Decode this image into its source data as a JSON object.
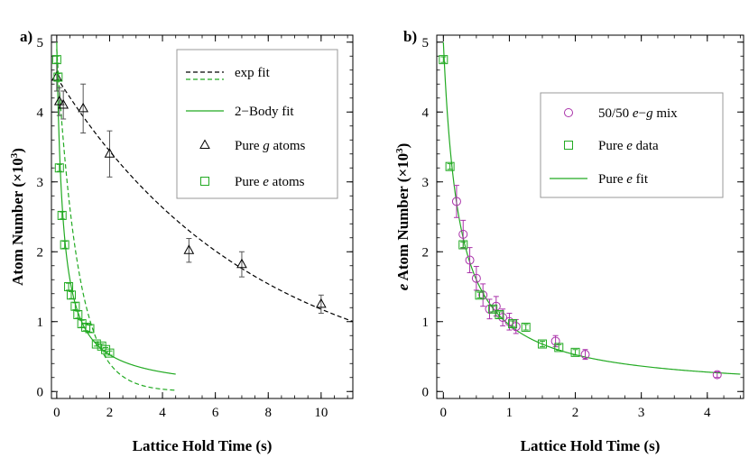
{
  "chart_data": [
    {
      "type": "scatter",
      "panel_label": "a)",
      "xlabel": "Lattice Hold Time (s)",
      "ylabel": "Atom Number (×10³)",
      "ylabel_parts": {
        "main": "Atom Number (×10",
        "sup": "3",
        "end": ")"
      },
      "xlim": [
        -0.2,
        11.2
      ],
      "ylim": [
        -0.1,
        5.1
      ],
      "xticks": [
        0,
        2,
        4,
        6,
        8,
        10
      ],
      "yticks": [
        0,
        1,
        2,
        3,
        4,
        5
      ],
      "grid": false,
      "legend_position": "top-right",
      "legend": [
        {
          "text": "exp fit",
          "style": "dashed-line",
          "color": "#000000"
        },
        {
          "text": "",
          "style": "dashed-line",
          "color": "#22aa22"
        },
        {
          "text": "2−Body fit",
          "style": "solid-line",
          "color": "#22aa22"
        },
        {
          "text_parts": [
            "Pure ",
            "g",
            " atoms"
          ],
          "style": "triangle",
          "color": "#000000"
        },
        {
          "text_parts": [
            "Pure ",
            "e",
            " atoms"
          ],
          "style": "square",
          "color": "#22aa22"
        }
      ],
      "series": [
        {
          "kind": "points",
          "marker": "triangle",
          "color": "#000000",
          "x": [
            0.0,
            0.1,
            0.25,
            1.0,
            2.0,
            5.0,
            7.0,
            10.0
          ],
          "y": [
            4.5,
            4.15,
            4.1,
            4.05,
            3.4,
            2.02,
            1.82,
            1.25
          ],
          "err": [
            0.2,
            0.2,
            0.2,
            0.35,
            0.33,
            0.17,
            0.18,
            0.13
          ]
        },
        {
          "kind": "points",
          "marker": "square",
          "color": "#22aa22",
          "x": [
            0.0,
            0.05,
            0.1,
            0.2,
            0.3,
            0.45,
            0.55,
            0.7,
            0.8,
            0.95,
            1.1,
            1.25,
            1.5,
            1.7,
            1.85,
            2.0
          ],
          "y": [
            4.75,
            4.5,
            3.2,
            2.52,
            2.1,
            1.5,
            1.38,
            1.22,
            1.1,
            0.97,
            0.92,
            0.9,
            0.68,
            0.65,
            0.6,
            0.55
          ],
          "err": [
            0.05,
            0.05,
            0.05,
            0.05,
            0.05,
            0.05,
            0.05,
            0.05,
            0.05,
            0.05,
            0.05,
            0.05,
            0.03,
            0.03,
            0.03,
            0.03
          ]
        },
        {
          "kind": "curve",
          "style": "dashed",
          "color": "#000000",
          "model": "exp",
          "N0": 4.5,
          "tau": 7.46,
          "xrange": [
            0.0,
            11.2
          ]
        },
        {
          "kind": "curve",
          "style": "dashed",
          "color": "#22aa22",
          "model": "exp",
          "N0": 4.9,
          "tau": 0.8,
          "xrange": [
            0.0,
            4.5
          ]
        },
        {
          "kind": "curve",
          "style": "solid",
          "color": "#22aa22",
          "model": "twobody",
          "N0": 5.0,
          "k": 0.85,
          "xrange": [
            0.0,
            4.5
          ]
        }
      ]
    },
    {
      "type": "scatter",
      "panel_label": "b)",
      "xlabel": "Lattice Hold Time (s)",
      "ylabel": "e Atom Number (×10³)",
      "ylabel_parts": {
        "italic": "e",
        "main": " Atom Number (×10",
        "sup": "3",
        "end": ")"
      },
      "xlim": [
        -0.1,
        4.55
      ],
      "ylim": [
        -0.1,
        5.1
      ],
      "xticks": [
        0,
        1,
        2,
        3,
        4
      ],
      "yticks": [
        0,
        1,
        2,
        3,
        4,
        5
      ],
      "grid": false,
      "legend_position": "top-right",
      "legend": [
        {
          "text_parts": [
            "50/50 ",
            "e",
            "−",
            "g",
            " mix"
          ],
          "style": "circle",
          "color": "#aa33aa"
        },
        {
          "text_parts": [
            "Pure ",
            "e",
            " data"
          ],
          "style": "square",
          "color": "#22aa22"
        },
        {
          "text_parts": [
            "Pure ",
            "e",
            " fit"
          ],
          "style": "solid-line",
          "color": "#22aa22"
        }
      ],
      "series": [
        {
          "kind": "points",
          "marker": "circle",
          "color": "#aa33aa",
          "x": [
            0.2,
            0.3,
            0.4,
            0.5,
            0.6,
            0.7,
            0.8,
            0.9,
            1.0,
            1.1,
            1.7,
            2.15,
            4.15
          ],
          "y": [
            2.72,
            2.25,
            1.88,
            1.62,
            1.38,
            1.18,
            1.22,
            1.06,
            1.0,
            0.93,
            0.72,
            0.53,
            0.24
          ],
          "err": [
            0.23,
            0.2,
            0.18,
            0.17,
            0.16,
            0.14,
            0.14,
            0.12,
            0.12,
            0.1,
            0.08,
            0.07,
            0.04
          ]
        },
        {
          "kind": "points",
          "marker": "square",
          "color": "#22aa22",
          "x": [
            0.0,
            0.1,
            0.3,
            0.55,
            0.75,
            0.85,
            1.05,
            1.25,
            1.5,
            1.75,
            2.0
          ],
          "y": [
            4.75,
            3.22,
            2.1,
            1.38,
            1.18,
            1.1,
            0.97,
            0.92,
            0.68,
            0.63,
            0.56
          ],
          "err": [
            0.04,
            0.04,
            0.04,
            0.04,
            0.04,
            0.04,
            0.04,
            0.04,
            0.04,
            0.04,
            0.04
          ]
        },
        {
          "kind": "curve",
          "style": "solid",
          "color": "#22aa22",
          "model": "twobody",
          "N0": 5.0,
          "k": 0.85,
          "xrange": [
            0.0,
            4.5
          ]
        }
      ]
    }
  ]
}
